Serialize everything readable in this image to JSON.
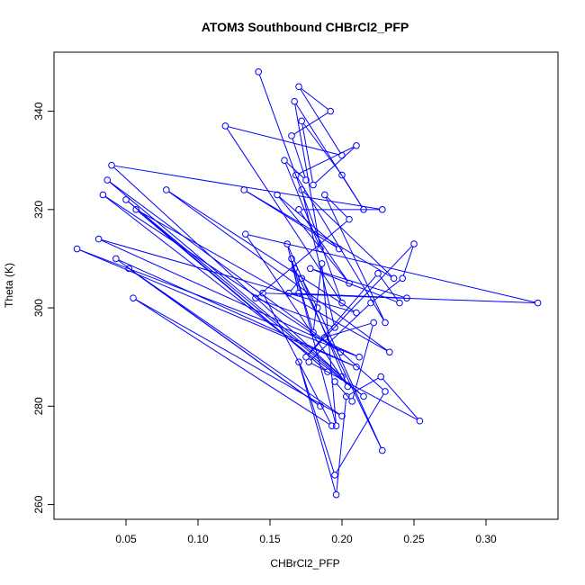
{
  "chart_data": {
    "type": "line",
    "title": "ATOM3 Southbound CHBrCl2_PFP",
    "xlabel": "CHBrCl2_PFP",
    "ylabel": "Theta (K)",
    "xlim": [
      0.0,
      0.35
    ],
    "ylim": [
      257,
      352
    ],
    "xticks": [
      0.05,
      0.1,
      0.15,
      0.2,
      0.25,
      0.3
    ],
    "xtick_labels": [
      "0.05",
      "0.10",
      "0.15",
      "0.20",
      "0.25",
      "0.30"
    ],
    "yticks": [
      260,
      280,
      300,
      320,
      340
    ],
    "ytick_labels": [
      "260",
      "280",
      "300",
      "320",
      "340"
    ],
    "grid": false,
    "legend": "none",
    "color": "#0000ff",
    "marker": "open-circle",
    "series": [
      {
        "x": [
          0.142,
          0.2,
          0.119,
          0.2,
          0.17,
          0.192,
          0.165,
          0.175,
          0.16,
          0.185,
          0.167,
          0.215,
          0.2,
          0.172,
          0.18,
          0.21,
          0.168,
          0.23,
          0.188,
          0.205,
          0.14,
          0.195,
          0.172,
          0.236,
          0.132,
          0.198,
          0.155,
          0.205,
          0.17,
          0.228,
          0.04,
          0.2,
          0.037,
          0.199,
          0.034,
          0.215,
          0.05,
          0.19,
          0.057,
          0.233,
          0.078,
          0.21,
          0.031,
          0.212,
          0.016,
          0.21,
          0.043,
          0.185,
          0.052,
          0.2,
          0.055,
          0.193,
          0.145,
          0.336,
          0.133,
          0.204,
          0.162,
          0.17,
          0.165,
          0.18,
          0.186,
          0.196,
          0.167,
          0.228,
          0.183,
          0.172,
          0.163,
          0.245,
          0.178,
          0.24,
          0.225,
          0.175,
          0.25,
          0.242,
          0.22,
          0.177,
          0.254,
          0.227,
          0.203,
          0.196,
          0.17,
          0.195,
          0.23,
          0.188,
          0.222,
          0.207,
          0.195
        ],
        "y": [
          348,
          301,
          337,
          331,
          345,
          340,
          335,
          326,
          330,
          312,
          342,
          320,
          327,
          338,
          325,
          333,
          327,
          297,
          323,
          318,
          302,
          296,
          324,
          306,
          324,
          312,
          323,
          305,
          320,
          320,
          329,
          286,
          326,
          291,
          323,
          282,
          322,
          287,
          320,
          291,
          324,
          299,
          314,
          290,
          312,
          288,
          310,
          280,
          308,
          278,
          302,
          276,
          303,
          301,
          315,
          284,
          313,
          303,
          310,
          295,
          309,
          276,
          308,
          271,
          300,
          306,
          303,
          302,
          308,
          301,
          307,
          290,
          313,
          306,
          301,
          289,
          277,
          286,
          282,
          262,
          289,
          266,
          283,
          294,
          297,
          281,
          285
        ]
      }
    ]
  }
}
